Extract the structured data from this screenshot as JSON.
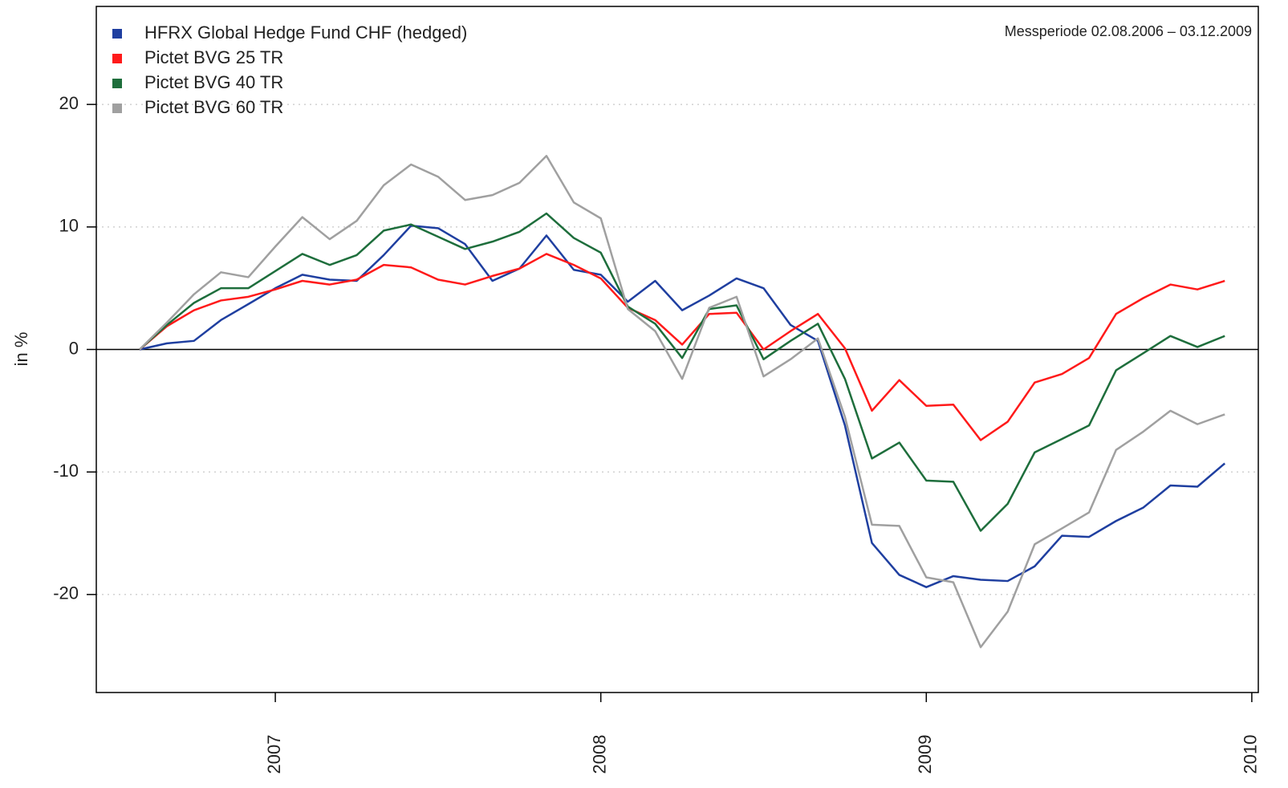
{
  "chart_data": {
    "type": "line",
    "y_label": "in %",
    "annotation": "Messperiode 02.08.2006 – 03.12.2009",
    "x": [
      2006.583,
      2006.667,
      2006.75,
      2006.833,
      2006.917,
      2007,
      2007.083,
      2007.167,
      2007.25,
      2007.333,
      2007.417,
      2007.5,
      2007.583,
      2007.667,
      2007.75,
      2007.833,
      2007.917,
      2008,
      2008.083,
      2008.167,
      2008.25,
      2008.333,
      2008.417,
      2008.5,
      2008.583,
      2008.667,
      2008.75,
      2008.833,
      2008.917,
      2009,
      2009.083,
      2009.167,
      2009.25,
      2009.333,
      2009.417,
      2009.5,
      2009.583,
      2009.667,
      2009.75,
      2009.833,
      2009.917
    ],
    "series": [
      {
        "name": "HFRX Global Hedge Fund CHF (hedged)",
        "color": "#1f3fa0",
        "values": [
          0,
          0.5,
          0.7,
          2.4,
          3.7,
          5.0,
          6.1,
          5.7,
          5.6,
          7.7,
          10.1,
          9.9,
          8.6,
          5.6,
          6.6,
          9.3,
          6.5,
          6.1,
          3.9,
          5.6,
          3.2,
          4.4,
          5.8,
          5.0,
          2.0,
          0.7,
          -6.2,
          -15.8,
          -18.4,
          -19.4,
          -18.5,
          -18.8,
          -18.9,
          -17.7,
          -15.2,
          -15.3,
          -14.0,
          -12.9,
          -11.1,
          -11.2,
          -9.3
        ]
      },
      {
        "name": "Pictet BVG 25 TR",
        "color": "#ff1a1a",
        "values": [
          0,
          1.9,
          3.2,
          4.0,
          4.3,
          4.9,
          5.6,
          5.3,
          5.7,
          6.9,
          6.7,
          5.7,
          5.3,
          6.0,
          6.6,
          7.8,
          6.9,
          5.8,
          3.4,
          2.4,
          0.4,
          2.9,
          3.0,
          0.0,
          1.5,
          2.9,
          0.1,
          -5.0,
          -2.5,
          -4.6,
          -4.5,
          -7.4,
          -5.9,
          -2.7,
          -2.0,
          -0.7,
          2.9,
          4.2,
          5.3,
          4.9,
          5.6
        ]
      },
      {
        "name": "Pictet BVG 40 TR",
        "color": "#1e6e3c",
        "values": [
          0,
          2.0,
          3.8,
          5.0,
          5.0,
          6.4,
          7.8,
          6.9,
          7.7,
          9.7,
          10.2,
          9.2,
          8.2,
          8.8,
          9.6,
          11.1,
          9.1,
          7.9,
          3.5,
          2.1,
          -0.7,
          3.3,
          3.6,
          -0.8,
          0.7,
          2.1,
          -2.4,
          -8.9,
          -7.6,
          -10.7,
          -10.8,
          -14.8,
          -12.6,
          -8.4,
          -7.3,
          -6.2,
          -1.7,
          -0.3,
          1.1,
          0.2,
          1.1
        ]
      },
      {
        "name": "Pictet BVG 60 TR",
        "color": "#a0a0a0",
        "values": [
          0,
          2.2,
          4.5,
          6.3,
          5.9,
          8.4,
          10.8,
          9.0,
          10.5,
          13.4,
          15.1,
          14.1,
          12.2,
          12.6,
          13.6,
          15.8,
          12.0,
          10.7,
          3.3,
          1.5,
          -2.4,
          3.4,
          4.3,
          -2.2,
          -0.8,
          0.9,
          -5.5,
          -14.3,
          -14.4,
          -18.6,
          -19.0,
          -24.3,
          -21.4,
          -15.9,
          -14.6,
          -13.3,
          -8.2,
          -6.7,
          -5.0,
          -6.1,
          -5.3
        ]
      }
    ],
    "xlim": [
      2006.45,
      2010.02
    ],
    "xticks": [
      2007,
      2008,
      2009,
      2010
    ],
    "ylim": [
      -28,
      28
    ],
    "yticks": [
      -20,
      -10,
      0,
      10,
      20
    ],
    "grid": true,
    "legend": "top-left"
  }
}
